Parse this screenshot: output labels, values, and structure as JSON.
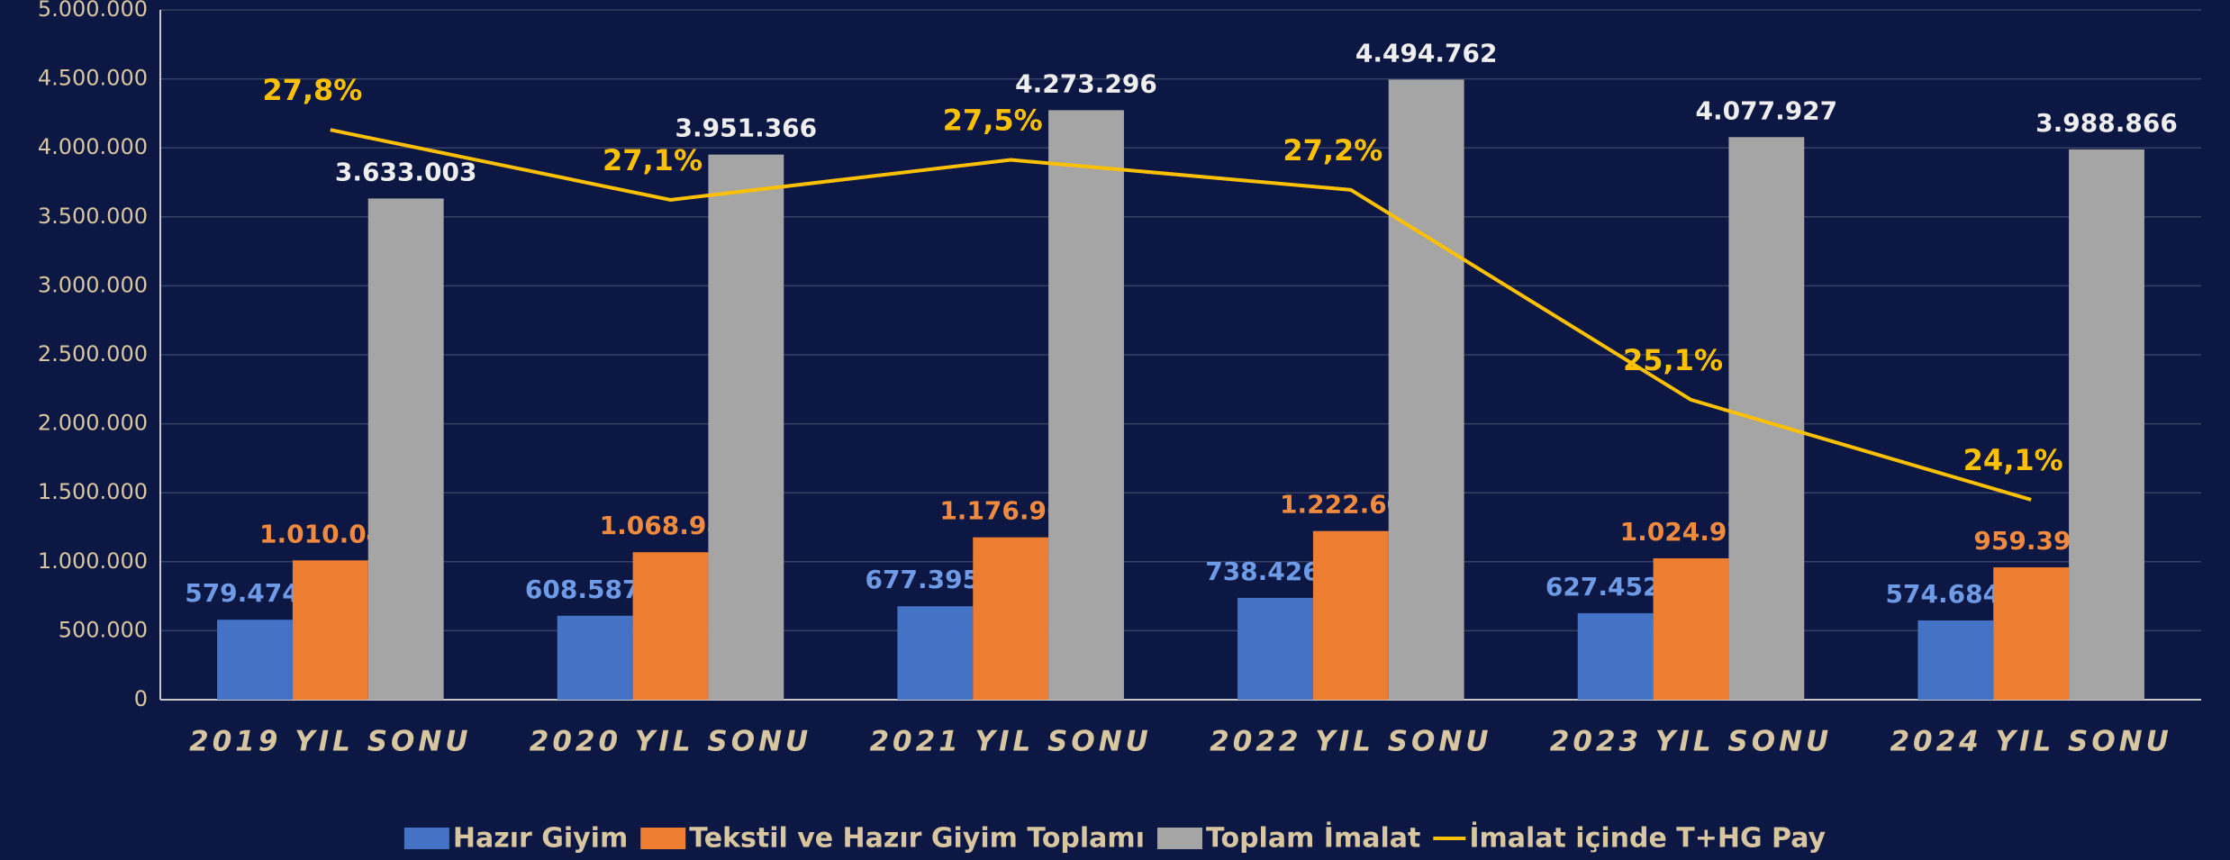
{
  "chart_data": {
    "type": "bar",
    "categories": [
      "2019 YIL SONU",
      "2020 YIL SONU",
      "2021 YIL SONU",
      "2022 YIL SONU",
      "2023 YIL SONU",
      "2024 YIL SONU"
    ],
    "series": [
      {
        "name": "Hazır Giyim",
        "color": "#4472c4",
        "values": [
          579474,
          608587,
          677395,
          738426,
          627452,
          574684
        ],
        "value_labels": [
          "579.474",
          "608.587",
          "677.395",
          "738.426",
          "627.452",
          "574.684"
        ]
      },
      {
        "name": "Tekstil ve Hazır Giyim Toplamı",
        "color": "#ed7d31",
        "values": [
          1010045,
          1068986,
          1176964,
          1222609,
          1024976,
          959395
        ],
        "value_labels": [
          "1.010.045",
          "1.068.986",
          "1.176.964",
          "1.222.609",
          "1.024.976",
          "959.395"
        ]
      },
      {
        "name": "Toplam İmalat",
        "color": "#a5a5a5",
        "values": [
          3633003,
          3951366,
          4273296,
          4494762,
          4077927,
          3988866
        ],
        "value_labels": [
          "3.633.003",
          "3.951.366",
          "4.273.296",
          "4.494.762",
          "4.077.927",
          "3.988.866"
        ]
      },
      {
        "name": "İmalat içinde T+HG Pay",
        "color": "#ffc000",
        "type": "line",
        "axis": "y2",
        "values": [
          27.8,
          27.1,
          27.5,
          27.2,
          25.1,
          24.1
        ],
        "value_labels": [
          "27,8%",
          "27,1%",
          "27,5%",
          "27,2%",
          "25,1%",
          "24,1%"
        ]
      }
    ],
    "ylim": [
      0,
      5000000
    ],
    "yticks": [
      0,
      {
        "value": 500000,
        "label": "500.000"
      },
      {
        "value": 1000000,
        "label": "1.000.000"
      },
      {
        "value": 1500000,
        "label": "1.500.000"
      },
      {
        "value": 2000000,
        "label": "2.000.000"
      },
      {
        "value": 2500000,
        "label": "2.500.000"
      },
      {
        "value": 3000000,
        "label": "3.000.000"
      },
      {
        "value": 3500000,
        "label": "3.500.000"
      },
      {
        "value": 4000000,
        "label": "4.000.000"
      },
      {
        "value": 4500000,
        "label": "4.500.000"
      },
      {
        "value": 5000000,
        "label": "5.000.000"
      }
    ],
    "y2lim": [
      22.1,
      29.0
    ],
    "grid": true,
    "legend": "bottom"
  }
}
